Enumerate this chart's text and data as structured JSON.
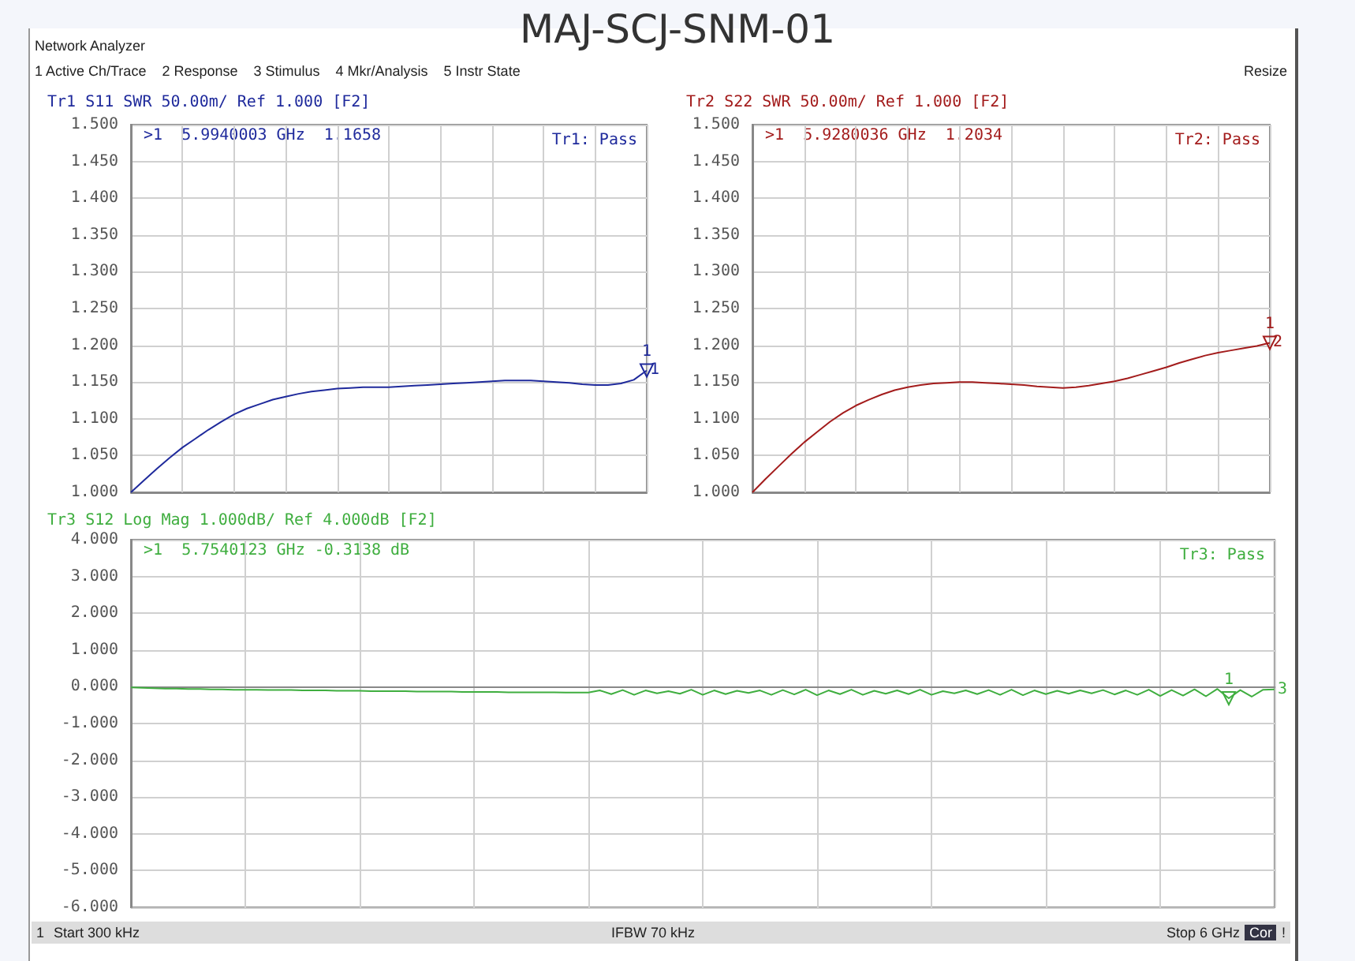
{
  "chart_data": [
    {
      "type": "line",
      "title": "MAJ-SCJ-SNM-01",
      "subtitle": "Tr1 S11 SWR 50.00m/ Ref 1.000 [F2]",
      "annotations": [
        ">1  5.9940003 GHz  1.1658",
        "Tr1: Pass",
        {
          "text": "1",
          "y": 1.1658
        },
        "Network Analyzer",
        "1 Active Ch/Trace",
        "2 Response",
        "3 Stimulus",
        "4 Mkr/Analysis",
        "5 Instr State",
        "Resize"
      ],
      "categories": [
        null,
        null,
        null,
        null,
        null,
        null,
        null,
        null,
        null,
        null,
        null,
        null,
        null,
        null,
        null,
        null,
        null,
        null,
        null,
        null,
        null,
        null,
        null,
        null,
        null,
        null,
        null,
        null,
        null,
        null,
        null,
        null,
        null,
        null,
        null,
        null,
        null,
        null,
        null,
        null,
        null
      ],
      "series": [
        {
          "name": "1",
          "color": "#1f2a9c",
          "values": [
            1.0,
            1.016,
            1.032,
            1.047,
            1.061,
            1.073,
            1.085,
            1.096,
            1.106,
            1.114,
            1.12,
            1.126,
            1.13,
            1.134,
            1.137,
            1.139,
            1.141,
            1.142,
            1.143,
            1.143,
            1.143,
            1.144,
            1.145,
            1.146,
            1.147,
            1.148,
            1.149,
            1.15,
            1.151,
            1.152,
            1.152,
            1.152,
            1.151,
            1.15,
            1.149,
            1.147,
            1.146,
            1.146,
            1.148,
            1.153,
            1.1658
          ]
        }
      ],
      "ylim": [
        1.0,
        1.5
      ],
      "yticks": [
        {
          "value": 1.0,
          "label": "1.000"
        },
        {
          "value": 1.05,
          "label": "1.050"
        },
        {
          "value": 1.1,
          "label": "1.100"
        },
        {
          "value": 1.15,
          "label": "1.150"
        },
        {
          "value": 1.2,
          "label": "1.200"
        },
        {
          "value": 1.25,
          "label": "1.250"
        },
        {
          "value": 1.3,
          "label": "1.300"
        },
        {
          "value": 1.35,
          "label": "1.350"
        },
        {
          "value": 1.4,
          "label": "1.400"
        },
        {
          "value": 1.45,
          "label": "1.450"
        },
        {
          "value": 1.5,
          "label": "1.500"
        }
      ],
      "grid": true,
      "tick_labels": "y",
      "marker": "none"
    },
    {
      "type": "line",
      "subtitle": "Tr2 S22 SWR 50.00m/ Ref 1.000 [F2]",
      "annotations": [
        ">1  5.9280036 GHz  1.2034",
        "Tr2: Pass",
        {
          "text": "1",
          "y": 1.2034
        }
      ],
      "categories": [
        null,
        null,
        null,
        null,
        null,
        null,
        null,
        null,
        null,
        null,
        null,
        null,
        null,
        null,
        null,
        null,
        null,
        null,
        null,
        null,
        null,
        null,
        null,
        null,
        null,
        null,
        null,
        null,
        null,
        null,
        null,
        null,
        null,
        null,
        null,
        null,
        null,
        null,
        null,
        null,
        null
      ],
      "series": [
        {
          "name": "2",
          "color": "#a31c1c",
          "values": [
            1.0,
            1.018,
            1.035,
            1.052,
            1.068,
            1.082,
            1.096,
            1.108,
            1.118,
            1.126,
            1.133,
            1.139,
            1.143,
            1.146,
            1.148,
            1.149,
            1.15,
            1.15,
            1.149,
            1.148,
            1.147,
            1.146,
            1.144,
            1.143,
            1.142,
            1.143,
            1.145,
            1.148,
            1.151,
            1.155,
            1.16,
            1.165,
            1.17,
            1.176,
            1.181,
            1.186,
            1.19,
            1.193,
            1.196,
            1.199,
            1.2034
          ]
        }
      ],
      "ylim": [
        1.0,
        1.5
      ],
      "yticks": [
        {
          "value": 1.0,
          "label": "1.000"
        },
        {
          "value": 1.05,
          "label": "1.050"
        },
        {
          "value": 1.1,
          "label": "1.100"
        },
        {
          "value": 1.15,
          "label": "1.150"
        },
        {
          "value": 1.2,
          "label": "1.200"
        },
        {
          "value": 1.25,
          "label": "1.250"
        },
        {
          "value": 1.3,
          "label": "1.300"
        },
        {
          "value": 1.35,
          "label": "1.350"
        },
        {
          "value": 1.4,
          "label": "1.400"
        },
        {
          "value": 1.45,
          "label": "1.450"
        },
        {
          "value": 1.5,
          "label": "1.500"
        }
      ],
      "grid": true,
      "tick_labels": "y",
      "marker": "none"
    },
    {
      "type": "line",
      "subtitle": "Tr3 S12 Log Mag 1.000dB/ Ref 4.000dB [F2]",
      "annotations": [
        ">1  5.7540123 GHz -0.3138 dB",
        "Tr3: Pass",
        {
          "text": "1",
          "y": -0.3138
        },
        "1",
        "Start 300 kHz",
        "IFBW 70 kHz",
        "Stop 6 GHz",
        "Cor",
        "!"
      ],
      "categories": [
        null,
        null,
        null,
        null,
        null,
        null,
        null,
        null,
        null,
        null,
        null,
        null,
        null,
        null,
        null,
        null,
        null,
        null,
        null,
        null,
        null,
        null,
        null,
        null,
        null,
        null,
        null,
        null,
        null,
        null,
        null,
        null,
        null,
        null,
        null,
        null,
        null,
        null,
        null,
        null,
        null,
        null,
        null,
        null,
        null,
        null,
        null,
        null,
        null,
        null,
        null,
        null,
        null,
        null,
        null,
        null,
        null,
        null,
        null,
        null,
        null,
        null,
        null,
        null,
        null,
        null,
        null,
        null,
        null,
        null,
        null,
        null,
        null,
        null,
        null,
        null,
        null,
        null,
        null,
        null,
        null,
        null,
        null,
        null,
        null,
        null,
        null,
        null,
        null,
        null,
        null,
        null,
        null,
        null,
        null,
        null,
        null,
        null,
        null,
        null,
        null
      ],
      "series": [
        {
          "name": "3",
          "color": "#3fae3f",
          "values": [
            -0.02,
            -0.03,
            -0.04,
            -0.05,
            -0.05,
            -0.06,
            -0.06,
            -0.07,
            -0.07,
            -0.08,
            -0.08,
            -0.08,
            -0.09,
            -0.09,
            -0.09,
            -0.1,
            -0.1,
            -0.1,
            -0.11,
            -0.11,
            -0.11,
            -0.12,
            -0.12,
            -0.12,
            -0.12,
            -0.13,
            -0.13,
            -0.13,
            -0.13,
            -0.14,
            -0.14,
            -0.14,
            -0.14,
            -0.15,
            -0.15,
            -0.15,
            -0.15,
            -0.15,
            -0.16,
            -0.16,
            -0.16,
            -0.1,
            -0.2,
            -0.09,
            -0.22,
            -0.1,
            -0.18,
            -0.12,
            -0.19,
            -0.08,
            -0.22,
            -0.1,
            -0.2,
            -0.11,
            -0.17,
            -0.1,
            -0.22,
            -0.09,
            -0.21,
            -0.08,
            -0.23,
            -0.1,
            -0.2,
            -0.08,
            -0.22,
            -0.11,
            -0.19,
            -0.1,
            -0.2,
            -0.08,
            -0.22,
            -0.12,
            -0.18,
            -0.1,
            -0.2,
            -0.09,
            -0.22,
            -0.08,
            -0.23,
            -0.1,
            -0.2,
            -0.11,
            -0.19,
            -0.1,
            -0.18,
            -0.09,
            -0.21,
            -0.1,
            -0.22,
            -0.08,
            -0.25,
            -0.09,
            -0.24,
            -0.07,
            -0.26,
            -0.06,
            -0.3138,
            -0.09,
            -0.27,
            -0.08,
            -0.07
          ]
        }
      ],
      "ylim": [
        -6,
        4
      ],
      "yticks": [
        {
          "value": -6,
          "label": "-6.000"
        },
        {
          "value": -5,
          "label": "-5.000"
        },
        {
          "value": -4,
          "label": "-4.000"
        },
        {
          "value": -3,
          "label": "-3.000"
        },
        {
          "value": -2,
          "label": "-2.000"
        },
        {
          "value": -1,
          "label": "-1.000"
        },
        {
          "value": 0,
          "label": "0.000"
        },
        {
          "value": 1,
          "label": "1.000"
        },
        {
          "value": 2,
          "label": "2.000"
        },
        {
          "value": 3,
          "label": "3.000"
        },
        {
          "value": 4,
          "label": "4.000"
        }
      ],
      "grid": true,
      "tick_labels": "y",
      "marker": "none"
    }
  ]
}
